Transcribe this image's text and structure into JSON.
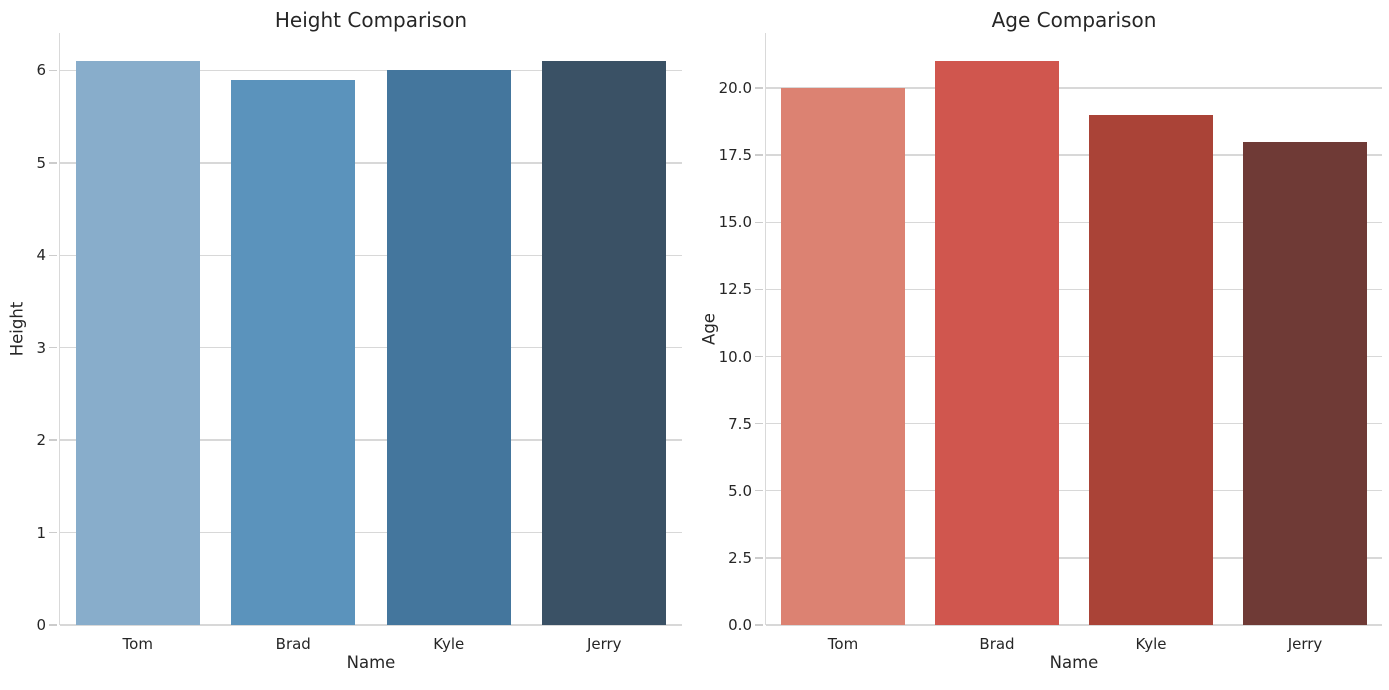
{
  "figure": {
    "background": "#ffffff",
    "text_color": "#262626",
    "grid_color": "#d8d8d8",
    "spine_color": "#cccccc"
  },
  "chart_data": [
    {
      "type": "bar",
      "title": "Height Comparison",
      "xlabel": "Name",
      "ylabel": "Height",
      "categories": [
        "Tom",
        "Brad",
        "Kyle",
        "Jerry"
      ],
      "values": [
        6.1,
        5.9,
        6.0,
        6.1
      ],
      "bar_colors": [
        "#88adcb",
        "#5b93bc",
        "#44769d",
        "#3a5165"
      ],
      "ylim": [
        0,
        6.405
      ],
      "yticks": [
        0,
        1,
        2,
        3,
        4,
        5,
        6
      ],
      "ytick_labels": [
        "0",
        "1",
        "2",
        "3",
        "4",
        "5",
        "6"
      ],
      "grid": true,
      "legend_position": "none",
      "bar_width_fraction": 0.8
    },
    {
      "type": "bar",
      "title": "Age Comparison",
      "xlabel": "Name",
      "ylabel": "Age",
      "categories": [
        "Tom",
        "Brad",
        "Kyle",
        "Jerry"
      ],
      "values": [
        20,
        21,
        19,
        18
      ],
      "bar_colors": [
        "#dc8272",
        "#d0564e",
        "#aa4337",
        "#6f3a36"
      ],
      "ylim": [
        0,
        22.05
      ],
      "yticks": [
        0,
        2.5,
        5,
        7.5,
        10,
        12.5,
        15,
        17.5,
        20
      ],
      "ytick_labels": [
        "0.0",
        "2.5",
        "5.0",
        "7.5",
        "10.0",
        "12.5",
        "15.0",
        "17.5",
        "20.0"
      ],
      "grid": true,
      "legend_position": "none",
      "bar_width_fraction": 0.8
    }
  ]
}
